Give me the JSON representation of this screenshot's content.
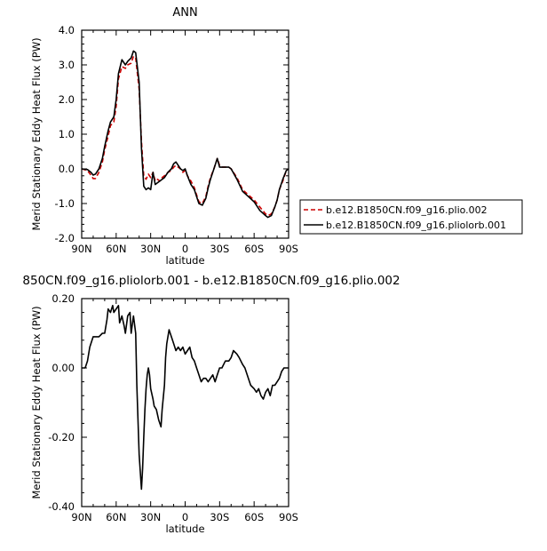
{
  "chart_data": [
    {
      "type": "line",
      "title": "ANN",
      "xlabel": "latitude",
      "ylabel": "Merid Stationary Eddy Heat Flux (PW)",
      "xlim": [
        90,
        -90
      ],
      "ylim": [
        -2.0,
        4.0
      ],
      "x_ticks": [
        90,
        60,
        30,
        0,
        -30,
        -60,
        -90
      ],
      "x_tick_labels": [
        "90N",
        "60N",
        "30N",
        "0",
        "30S",
        "60S",
        "90S"
      ],
      "y_ticks": [
        -2.0,
        -1.0,
        0.0,
        1.0,
        2.0,
        3.0,
        4.0
      ],
      "y_tick_labels": [
        "-2.0",
        "-1.0",
        "0.0",
        "1.0",
        "2.0",
        "3.0",
        "4.0"
      ],
      "legend_position": "right",
      "series": [
        {
          "name": "b.e12.B1850CN.f09_g16.plio.002",
          "color": "#cc0000",
          "dash": "dashed",
          "x": [
            90,
            85,
            82,
            80,
            78,
            75,
            72,
            70,
            67,
            65,
            62,
            60,
            58,
            55,
            52,
            50,
            47,
            45,
            43,
            40,
            38,
            36,
            34,
            32,
            30,
            28,
            26,
            24,
            22,
            20,
            18,
            15,
            12,
            10,
            8,
            6,
            4,
            2,
            0,
            -2,
            -5,
            -8,
            -10,
            -12,
            -15,
            -18,
            -20,
            -22,
            -25,
            -28,
            -30,
            -32,
            -35,
            -38,
            -40,
            -45,
            -50,
            -55,
            -60,
            -65,
            -70,
            -72,
            -75,
            -78,
            -80,
            -82,
            -85,
            -88,
            -90
          ],
          "y": [
            0.0,
            -0.05,
            -0.18,
            -0.28,
            -0.28,
            -0.1,
            0.2,
            0.55,
            0.95,
            1.25,
            1.35,
            1.8,
            2.6,
            2.95,
            2.9,
            3.0,
            3.05,
            3.25,
            3.2,
            2.3,
            0.8,
            -0.2,
            -0.3,
            -0.15,
            -0.25,
            -0.1,
            -0.35,
            -0.3,
            -0.35,
            -0.25,
            -0.2,
            -0.1,
            -0.05,
            0.05,
            0.1,
            0.05,
            0.0,
            -0.1,
            -0.05,
            -0.2,
            -0.35,
            -0.55,
            -0.75,
            -0.95,
            -1.0,
            -0.8,
            -0.5,
            -0.25,
            0.0,
            0.3,
            0.1,
            0.05,
            0.05,
            0.05,
            0.0,
            -0.25,
            -0.6,
            -0.75,
            -0.9,
            -1.1,
            -1.3,
            -1.35,
            -1.3,
            -1.1,
            -0.9,
            -0.6,
            -0.35,
            -0.05,
            0.0
          ]
        },
        {
          "name": "b.e12.B1850CN.f09_g16.pliolorb.001",
          "color": "#000000",
          "dash": "solid",
          "x": [
            90,
            85,
            82,
            80,
            78,
            75,
            72,
            70,
            67,
            65,
            62,
            60,
            58,
            55,
            52,
            50,
            47,
            45,
            43,
            40,
            38,
            36,
            34,
            32,
            30,
            28,
            26,
            24,
            22,
            20,
            18,
            15,
            12,
            10,
            8,
            6,
            4,
            2,
            0,
            -2,
            -5,
            -8,
            -10,
            -12,
            -15,
            -18,
            -20,
            -22,
            -25,
            -28,
            -30,
            -32,
            -35,
            -38,
            -40,
            -45,
            -50,
            -55,
            -60,
            -65,
            -70,
            -72,
            -75,
            -78,
            -80,
            -82,
            -85,
            -88,
            -90
          ],
          "y": [
            0.0,
            -0.02,
            -0.1,
            -0.18,
            -0.15,
            0.0,
            0.3,
            0.65,
            1.1,
            1.35,
            1.5,
            2.0,
            2.75,
            3.15,
            3.0,
            3.1,
            3.2,
            3.4,
            3.35,
            2.5,
            0.6,
            -0.5,
            -0.6,
            -0.55,
            -0.6,
            -0.1,
            -0.45,
            -0.4,
            -0.35,
            -0.3,
            -0.25,
            -0.1,
            0.0,
            0.15,
            0.2,
            0.1,
            0.0,
            -0.05,
            0.0,
            -0.2,
            -0.45,
            -0.6,
            -0.8,
            -1.0,
            -1.05,
            -0.85,
            -0.55,
            -0.3,
            0.0,
            0.3,
            0.05,
            0.05,
            0.05,
            0.05,
            0.0,
            -0.3,
            -0.65,
            -0.8,
            -0.95,
            -1.2,
            -1.35,
            -1.4,
            -1.35,
            -1.1,
            -0.9,
            -0.6,
            -0.3,
            -0.05,
            0.0
          ]
        }
      ]
    },
    {
      "type": "line",
      "title": "850CN.f09_g16.pliolorb.001 - b.e12.B1850CN.f09_g16.plio.002",
      "xlabel": "latitude",
      "ylabel": "Merid Stationary Eddy Heat Flux (PW)",
      "xlim": [
        90,
        -90
      ],
      "ylim": [
        -0.4,
        0.2
      ],
      "x_ticks": [
        90,
        60,
        30,
        0,
        -30,
        -60,
        -90
      ],
      "x_tick_labels": [
        "90N",
        "60N",
        "30N",
        "0",
        "30S",
        "60S",
        "90S"
      ],
      "y_ticks": [
        -0.4,
        -0.2,
        0.0,
        0.2
      ],
      "y_tick_labels": [
        "-0.40",
        "-0.20",
        "0.00",
        "0.20"
      ],
      "series": [
        {
          "color": "#000000",
          "dash": "solid",
          "x": [
            90,
            87,
            85,
            83,
            80,
            77,
            75,
            72,
            70,
            68,
            67,
            65,
            63,
            62,
            60,
            58,
            57,
            55,
            53,
            52,
            50,
            48,
            47,
            45,
            43,
            42,
            40,
            38,
            37,
            36,
            35,
            34,
            33,
            32,
            31,
            30,
            28,
            27,
            25,
            23,
            21,
            20,
            18,
            17,
            16,
            14,
            12,
            10,
            8,
            6,
            4,
            2,
            0,
            -2,
            -4,
            -6,
            -8,
            -10,
            -12,
            -14,
            -16,
            -18,
            -20,
            -22,
            -24,
            -26,
            -28,
            -30,
            -32,
            -35,
            -38,
            -40,
            -42,
            -45,
            -47,
            -50,
            -52,
            -55,
            -57,
            -60,
            -62,
            -64,
            -66,
            -68,
            -70,
            -72,
            -74,
            -76,
            -78,
            -80,
            -82,
            -84,
            -86,
            -88,
            -90
          ],
          "y": [
            0.0,
            0.0,
            0.02,
            0.06,
            0.09,
            0.09,
            0.09,
            0.1,
            0.1,
            0.14,
            0.17,
            0.16,
            0.18,
            0.16,
            0.17,
            0.18,
            0.13,
            0.15,
            0.12,
            0.1,
            0.15,
            0.16,
            0.1,
            0.15,
            0.1,
            -0.05,
            -0.25,
            -0.35,
            -0.29,
            -0.2,
            -0.12,
            -0.06,
            -0.02,
            0.0,
            -0.02,
            -0.06,
            -0.09,
            -0.11,
            -0.12,
            -0.15,
            -0.17,
            -0.12,
            -0.05,
            0.03,
            0.07,
            0.11,
            0.09,
            0.07,
            0.05,
            0.06,
            0.05,
            0.06,
            0.04,
            0.05,
            0.06,
            0.03,
            0.02,
            0.0,
            -0.02,
            -0.04,
            -0.03,
            -0.03,
            -0.04,
            -0.03,
            -0.02,
            -0.04,
            -0.02,
            0.0,
            0.0,
            0.02,
            0.02,
            0.03,
            0.05,
            0.04,
            0.03,
            0.01,
            0.0,
            -0.03,
            -0.05,
            -0.06,
            -0.07,
            -0.06,
            -0.08,
            -0.09,
            -0.07,
            -0.06,
            -0.08,
            -0.05,
            -0.05,
            -0.04,
            -0.03,
            -0.01,
            0.0,
            0.0,
            0.0
          ]
        }
      ]
    }
  ]
}
